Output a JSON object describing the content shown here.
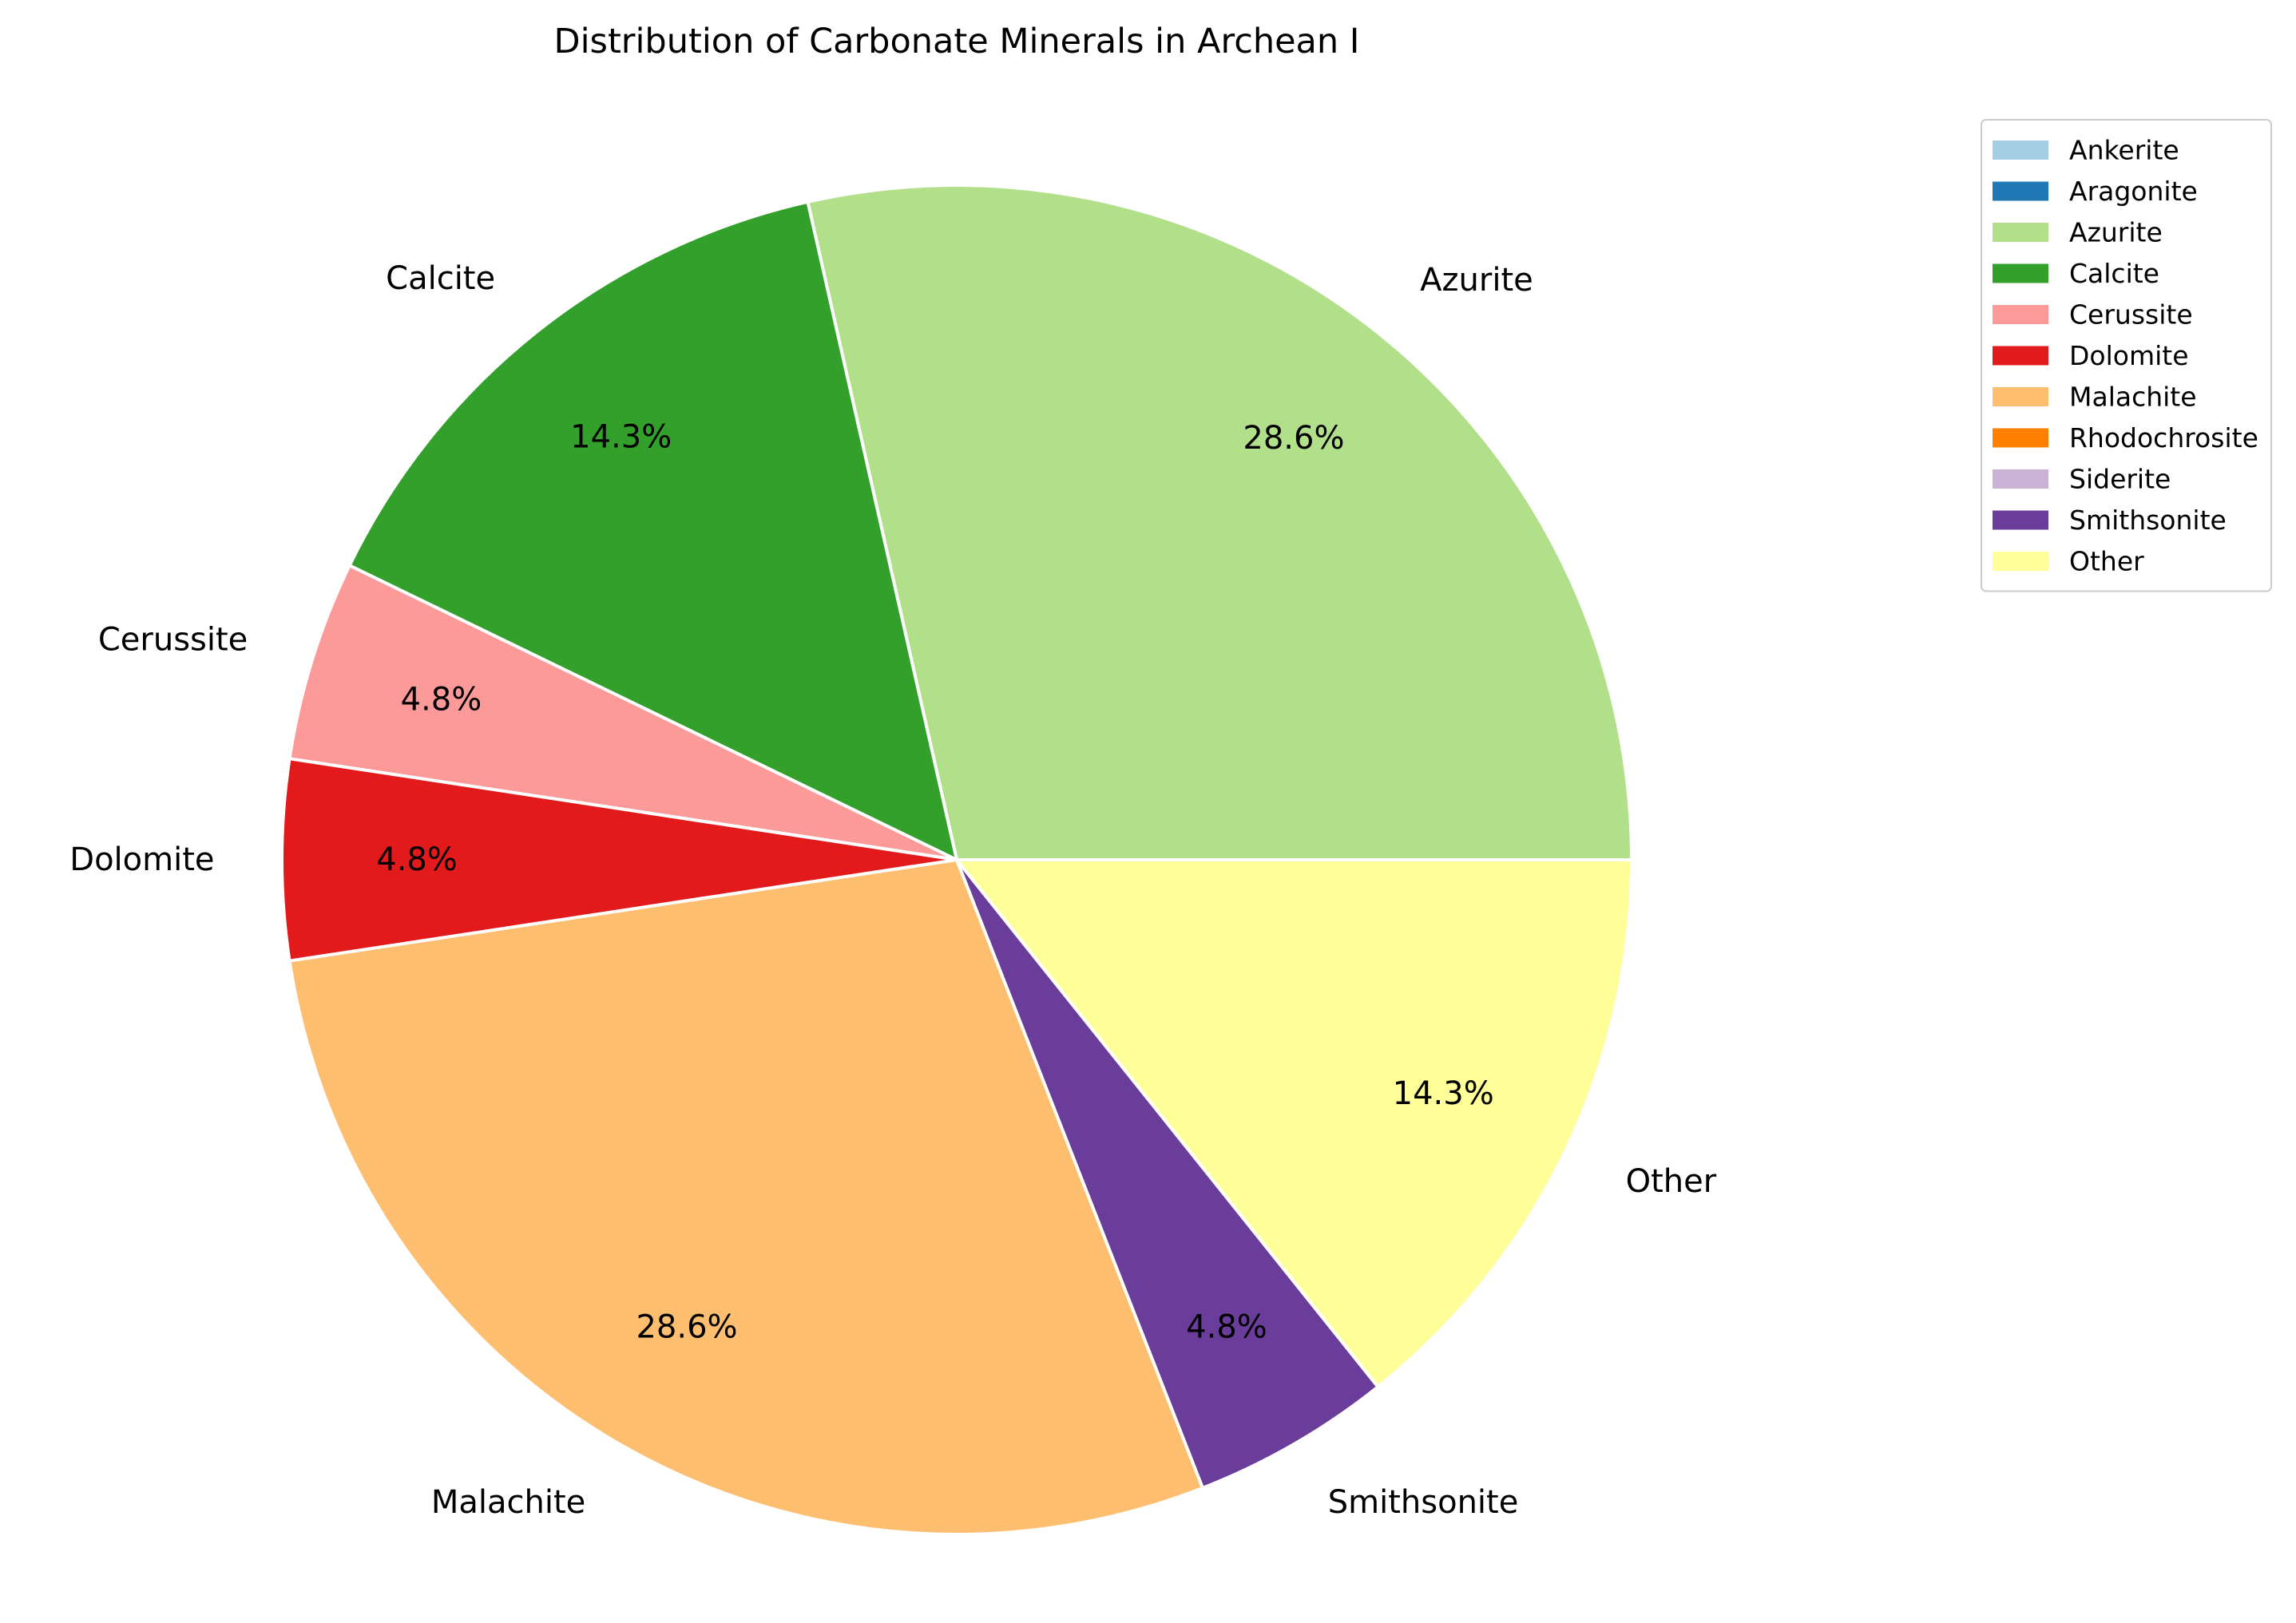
{
  "chart_data": {
    "type": "pie",
    "title": "Distribution of Carbonate Minerals in Archean I",
    "slices": [
      {
        "label": "Azurite",
        "value": 28.6,
        "pct_label": "28.6%",
        "color": "#b2df8a"
      },
      {
        "label": "Calcite",
        "value": 14.3,
        "pct_label": "14.3%",
        "color": "#33a02c"
      },
      {
        "label": "Cerussite",
        "value": 4.8,
        "pct_label": "4.8%",
        "color": "#fb9a99"
      },
      {
        "label": "Dolomite",
        "value": 4.8,
        "pct_label": "4.8%",
        "color": "#e31a1c"
      },
      {
        "label": "Malachite",
        "value": 28.6,
        "pct_label": "28.6%",
        "color": "#fdbf6f"
      },
      {
        "label": "Smithsonite",
        "value": 4.8,
        "pct_label": "4.8%",
        "color": "#6a3d9a"
      },
      {
        "label": "Other",
        "value": 14.3,
        "pct_label": "14.3%",
        "color": "#ffff99"
      }
    ],
    "legend": {
      "placement": "top-right",
      "entries": [
        {
          "label": "Ankerite",
          "color": "#a6cee3"
        },
        {
          "label": "Aragonite",
          "color": "#1f78b4"
        },
        {
          "label": "Azurite",
          "color": "#b2df8a"
        },
        {
          "label": "Calcite",
          "color": "#33a02c"
        },
        {
          "label": "Cerussite",
          "color": "#fb9a99"
        },
        {
          "label": "Dolomite",
          "color": "#e31a1c"
        },
        {
          "label": "Malachite",
          "color": "#fdbf6f"
        },
        {
          "label": "Rhodochrosite",
          "color": "#ff7f00"
        },
        {
          "label": "Siderite",
          "color": "#cab2d6"
        },
        {
          "label": "Smithsonite",
          "color": "#6a3d9a"
        },
        {
          "label": "Other",
          "color": "#ffff99"
        }
      ]
    }
  }
}
